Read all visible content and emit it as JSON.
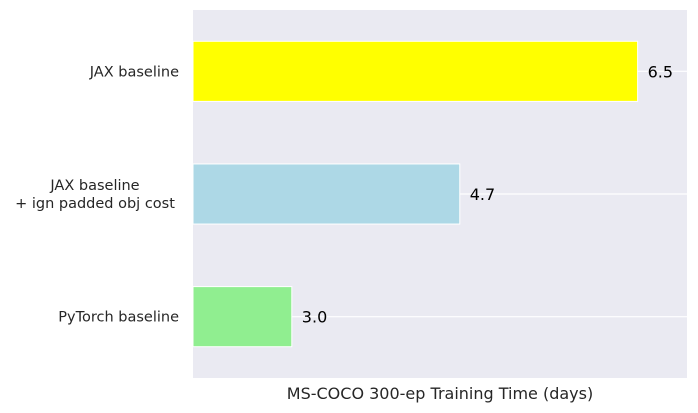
{
  "chart_data": {
    "type": "bar",
    "orientation": "horizontal",
    "categories": [
      [
        "JAX baseline"
      ],
      [
        "JAX baseline",
        "+ ign padded obj cost"
      ],
      [
        "PyTorch baseline"
      ]
    ],
    "values": [
      6.5,
      4.7,
      3.0
    ],
    "value_labels": [
      "6.5",
      "4.7",
      "3.0"
    ],
    "bar_colors": [
      "#ffff00",
      "#add8e6",
      "#90ee90"
    ],
    "title": "",
    "xlabel": "MS-COCO 300-ep Training Time (days)",
    "ylabel": "",
    "xlim": [
      2.0,
      7.0
    ],
    "x_ticks_shown": false,
    "grid": true,
    "background": "#eaeaf2",
    "grid_color": "#ffffff"
  }
}
